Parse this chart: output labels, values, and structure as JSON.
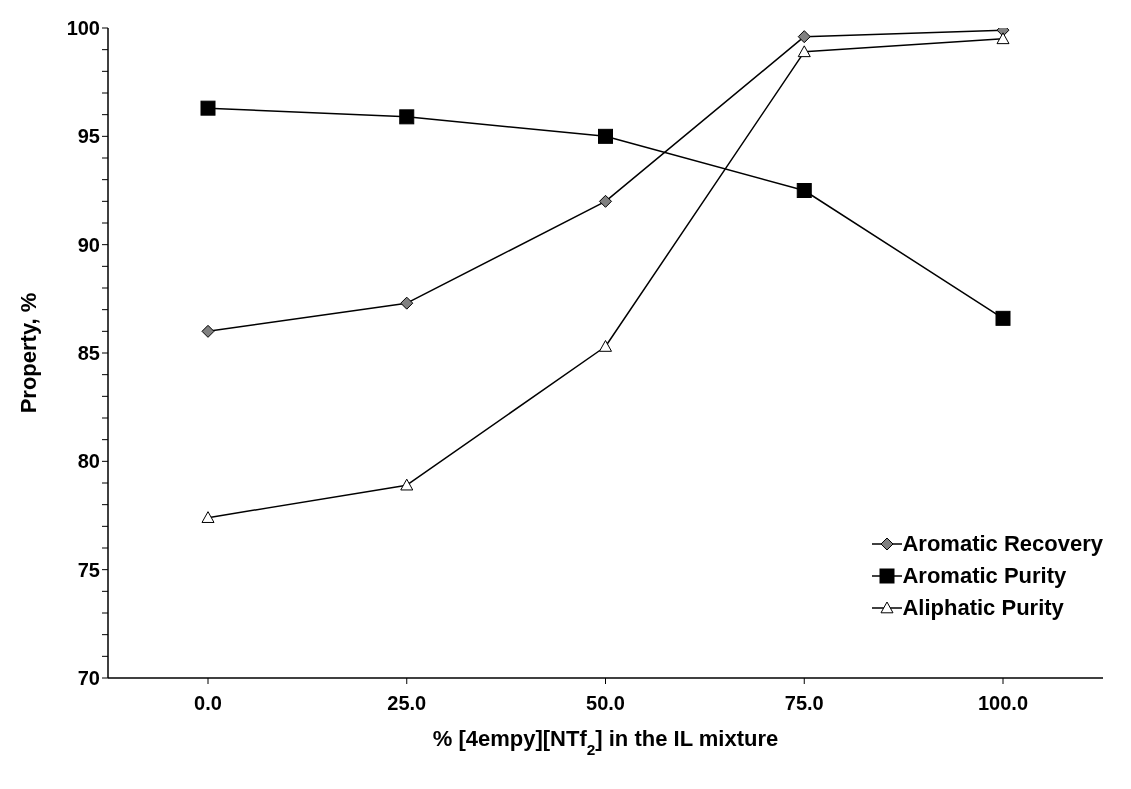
{
  "chart_data": {
    "type": "line",
    "xlabel": "% [4empy][NTf$_{2}$] in the IL mixture",
    "ylabel": "Property, %",
    "categories": [
      "0.0",
      "25.0",
      "50.0",
      "75.0",
      "100.0"
    ],
    "series": [
      {
        "name": "Aromatic Recovery",
        "color": "#808080",
        "marker": "diamond",
        "values": [
          86.0,
          87.3,
          92.0,
          99.6,
          99.9
        ]
      },
      {
        "name": "Aromatic Purity",
        "color": "#000000",
        "marker": "square",
        "values": [
          96.3,
          95.9,
          95.0,
          92.5,
          86.6
        ]
      },
      {
        "name": "Aliphatic Purity",
        "color": "#ffffff",
        "marker": "triangle",
        "values": [
          77.4,
          78.9,
          85.3,
          98.9,
          99.5
        ]
      }
    ],
    "ylim": [
      70,
      100
    ],
    "yticks": [
      70,
      {
        "value": 71,
        "label": null
      },
      {
        "value": 72,
        "label": null
      },
      {
        "value": 73,
        "label": null
      },
      {
        "value": 74,
        "label": null
      },
      75,
      {
        "value": 76,
        "label": null
      },
      {
        "value": 77,
        "label": null
      },
      {
        "value": 78,
        "label": null
      },
      {
        "value": 79,
        "label": null
      },
      80,
      {
        "value": 81,
        "label": null
      },
      {
        "value": 82,
        "label": null
      },
      {
        "value": 83,
        "label": null
      },
      {
        "value": 84,
        "label": null
      },
      85,
      {
        "value": 86,
        "label": null
      },
      {
        "value": 87,
        "label": null
      },
      {
        "value": 88,
        "label": null
      },
      {
        "value": 89,
        "label": null
      },
      90,
      {
        "value": 91,
        "label": null
      },
      {
        "value": 92,
        "label": null
      },
      {
        "value": 93,
        "label": null
      },
      {
        "value": 94,
        "label": null
      },
      95,
      {
        "value": 96,
        "label": null
      },
      {
        "value": 97,
        "label": null
      },
      {
        "value": 98,
        "label": null
      },
      {
        "value": 99,
        "label": null
      },
      100
    ],
    "grid": false,
    "legend": "bottom right",
    "line_style": "solid"
  }
}
